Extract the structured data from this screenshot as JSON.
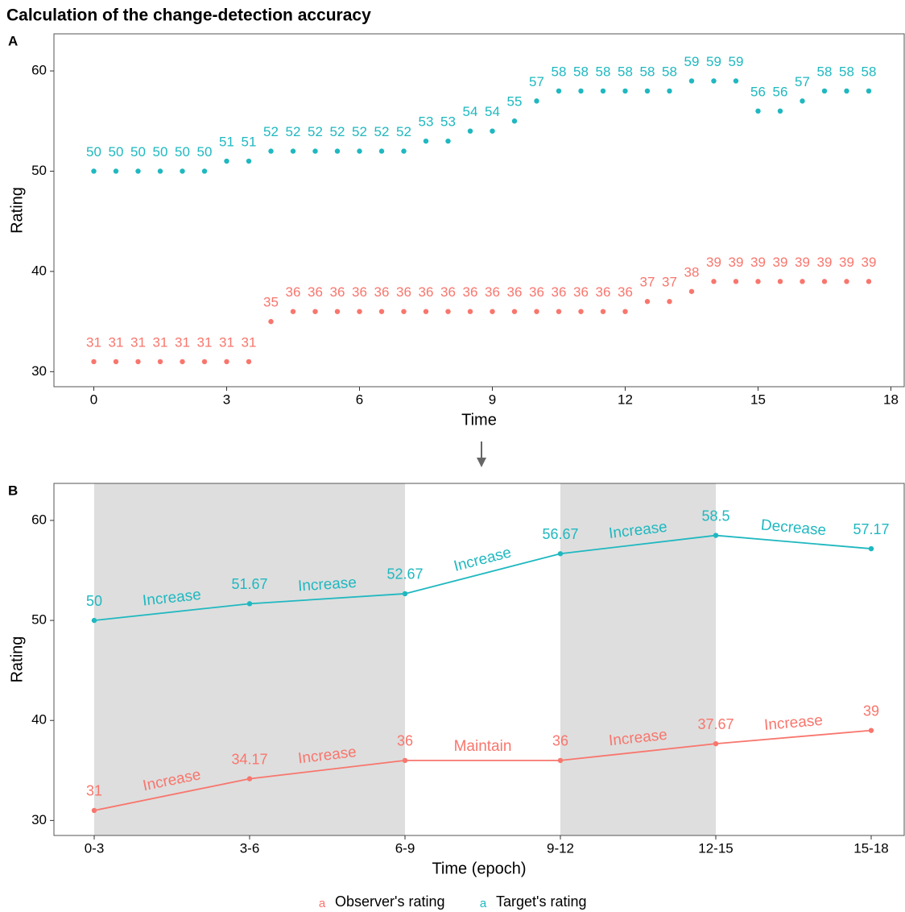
{
  "title": "Calculation of the change-detection accuracy",
  "chart_data": [
    {
      "type": "scatter",
      "tag": "A",
      "x_label": "Time",
      "y_label": "Rating",
      "x": [
        0,
        0.5,
        1,
        1.5,
        2,
        2.5,
        3,
        3.5,
        4,
        4.5,
        5,
        5.5,
        6,
        6.5,
        7,
        7.5,
        8,
        8.5,
        9,
        9.5,
        10,
        10.5,
        11,
        11.5,
        12,
        12.5,
        13,
        13.5,
        14,
        14.5,
        15,
        15.5,
        16,
        16.5,
        17,
        17.5
      ],
      "series": [
        {
          "name": "Observer's rating",
          "color": "#f8766d",
          "values": [
            31,
            31,
            31,
            31,
            31,
            31,
            31,
            31,
            35,
            36,
            36,
            36,
            36,
            36,
            36,
            36,
            36,
            36,
            36,
            36,
            36,
            36,
            36,
            36,
            36,
            37,
            37,
            38,
            39,
            39,
            39,
            39,
            39,
            39,
            39,
            39
          ]
        },
        {
          "name": "Target's rating",
          "color": "#1fb8c0",
          "values": [
            50,
            50,
            50,
            50,
            50,
            50,
            51,
            51,
            52,
            52,
            52,
            52,
            52,
            52,
            52,
            53,
            53,
            54,
            54,
            55,
            57,
            58,
            58,
            58,
            58,
            58,
            58,
            59,
            59,
            59,
            56,
            56,
            57,
            58,
            58,
            58
          ]
        }
      ],
      "xlim": [
        -0.9,
        18.3
      ],
      "xticks": [
        0,
        3,
        6,
        9,
        12,
        15,
        18
      ],
      "ylim": [
        28.5,
        63.7
      ],
      "yticks": [
        30,
        40,
        50,
        60
      ],
      "grid": false
    },
    {
      "type": "line",
      "tag": "B",
      "x_label": "Time (epoch)",
      "y_label": "Rating",
      "categories": [
        "0-3",
        "3-6",
        "6-9",
        "9-12",
        "12-15",
        "15-18"
      ],
      "series": [
        {
          "name": "Observer's rating",
          "color": "#f8766d",
          "values": [
            31,
            34.17,
            36,
            36,
            37.67,
            39
          ],
          "segment_labels": [
            "Increase",
            "Increase",
            "Maintain",
            "Increase",
            "Increase"
          ]
        },
        {
          "name": "Target's rating",
          "color": "#1fb8c0",
          "values": [
            50,
            51.67,
            52.67,
            56.67,
            58.5,
            57.17
          ],
          "segment_labels": [
            "Increase",
            "Increase",
            "Increase",
            "Increase",
            "Decrease"
          ]
        }
      ],
      "ylim": [
        28.5,
        63.7
      ],
      "yticks": [
        30,
        40,
        50,
        60
      ],
      "grid": false,
      "legend": "bottom",
      "legend_key": "a"
    }
  ]
}
